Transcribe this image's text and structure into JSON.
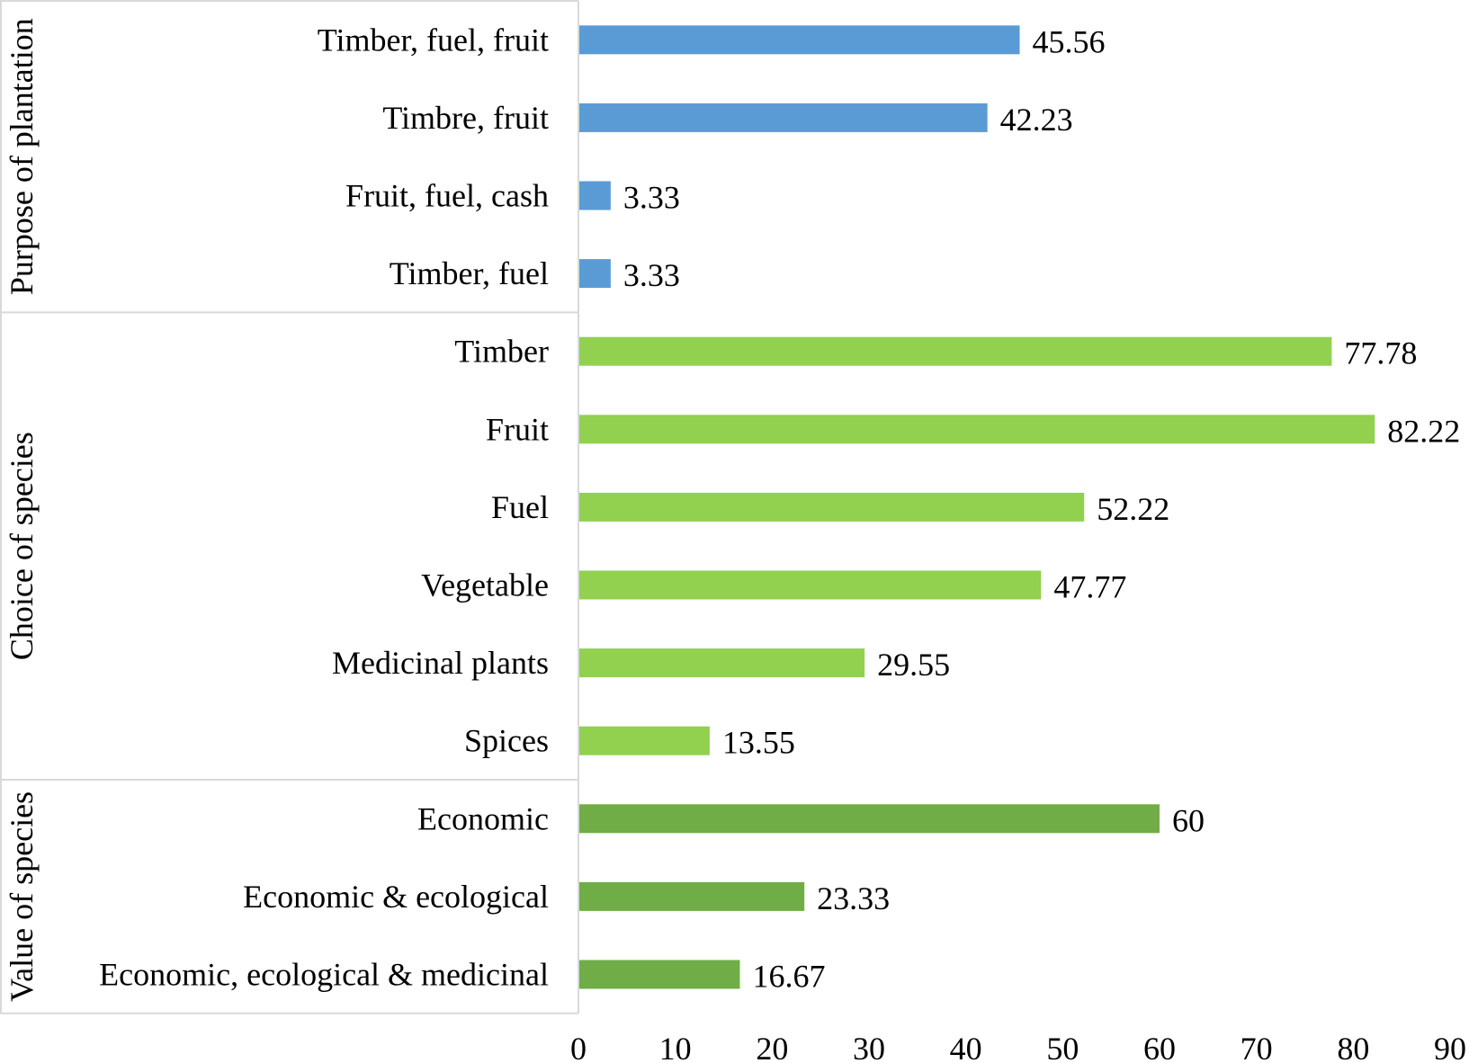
{
  "chart_data": {
    "type": "bar",
    "orientation": "horizontal",
    "xlim": [
      0,
      90
    ],
    "xticks": [
      "0",
      "10",
      "20",
      "30",
      "40",
      "50",
      "60",
      "70",
      "80",
      "90"
    ],
    "grid": false,
    "groups": [
      {
        "name": "Purpose of plantation",
        "color": "#5B9BD5",
        "categories": [
          "Timber, fuel, fruit",
          "Timbre, fruit",
          "Fruit, fuel, cash",
          "Timber, fuel"
        ],
        "values": [
          45.56,
          42.23,
          3.33,
          3.33
        ],
        "labels": [
          "45.56",
          "42.23",
          "3.33",
          "3.33"
        ]
      },
      {
        "name": "Choice of species",
        "color": "#92D050",
        "categories": [
          "Timber",
          "Fruit",
          "Fuel",
          "Vegetable",
          "Medicinal plants",
          "Spices"
        ],
        "values": [
          77.78,
          82.22,
          52.22,
          47.77,
          29.55,
          13.55
        ],
        "labels": [
          "77.78",
          "82.22",
          "52.22",
          "47.77",
          "29.55",
          "13.55"
        ]
      },
      {
        "name": "Value of species",
        "color": "#70AD47",
        "categories": [
          "Economic",
          "Economic & ecological",
          "Economic, ecological & medicinal"
        ],
        "values": [
          60,
          23.33,
          16.67
        ],
        "labels": [
          "60",
          "23.33",
          "16.67"
        ]
      }
    ]
  }
}
